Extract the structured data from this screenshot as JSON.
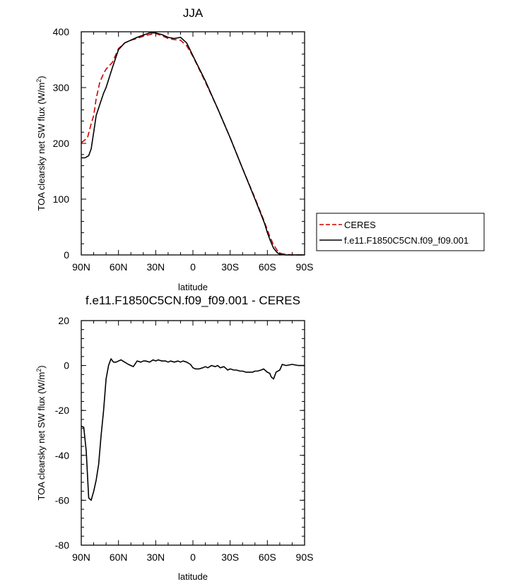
{
  "chart_data": [
    {
      "type": "line",
      "title": "JJA",
      "xlabel": "latitude",
      "ylabel": "TOA clearsky net SW flux (W/m",
      "ylabel_sup": "2",
      "ylabel_close": ")",
      "xlim": [
        90,
        -90
      ],
      "ylim": [
        0,
        400
      ],
      "x_ticks": [
        {
          "value": 90,
          "label": "90N"
        },
        {
          "value": 60,
          "label": "60N"
        },
        {
          "value": 30,
          "label": "30N"
        },
        {
          "value": 0,
          "label": "0"
        },
        {
          "value": -30,
          "label": "30S"
        },
        {
          "value": -60,
          "label": "60S"
        },
        {
          "value": -90,
          "label": "90S"
        }
      ],
      "y_ticks": [
        0,
        100,
        200,
        300,
        400
      ],
      "grid": false,
      "legend": "right",
      "series": [
        {
          "name": "CERES",
          "color": "#cc0000",
          "dash": "dashed",
          "x": [
            90,
            85,
            82,
            80,
            78,
            75,
            72,
            70,
            65,
            60,
            55,
            50,
            45,
            40,
            35,
            30,
            25,
            20,
            15,
            10,
            5,
            0,
            -10,
            -20,
            -30,
            -40,
            -50,
            -55,
            -58,
            -60,
            -62,
            -65,
            -68,
            -70,
            -75,
            -80,
            -85,
            -90
          ],
          "y": [
            201,
            210,
            235,
            250,
            280,
            310,
            325,
            333,
            345,
            370,
            380,
            385,
            388,
            392,
            395,
            397,
            393,
            388,
            386,
            385,
            375,
            356,
            310,
            262,
            210,
            155,
            102,
            74,
            57,
            45,
            33,
            18,
            8,
            3,
            1,
            0,
            0,
            0
          ]
        },
        {
          "name": "f.e11.F1850C5CN.f09_f09.001",
          "color": "#000000",
          "dash": "solid",
          "x": [
            90,
            87,
            84,
            82,
            80,
            78,
            75,
            72,
            70,
            65,
            60,
            55,
            50,
            45,
            40,
            35,
            30,
            25,
            20,
            15,
            10,
            5,
            0,
            -10,
            -20,
            -30,
            -40,
            -50,
            -55,
            -58,
            -60,
            -62,
            -65,
            -68,
            -70,
            -75,
            -80,
            -85,
            -90
          ],
          "y": [
            174,
            174,
            178,
            190,
            220,
            250,
            270,
            290,
            300,
            335,
            368,
            380,
            385,
            390,
            394,
            398,
            398,
            395,
            390,
            388,
            390,
            380,
            357,
            312,
            262,
            210,
            155,
            100,
            72,
            55,
            40,
            28,
            12,
            4,
            1,
            0,
            0,
            0,
            0
          ]
        }
      ]
    },
    {
      "type": "line",
      "title": "f.e11.F1850C5CN.f09_f09.001 - CERES",
      "xlabel": "latitude",
      "ylabel": "TOA clearsky net SW flux (W/m",
      "ylabel_sup": "2",
      "ylabel_close": ")",
      "xlim": [
        90,
        -90
      ],
      "ylim": [
        -80,
        20
      ],
      "x_ticks": [
        {
          "value": 90,
          "label": "90N"
        },
        {
          "value": 60,
          "label": "60N"
        },
        {
          "value": 30,
          "label": "30N"
        },
        {
          "value": 0,
          "label": "0"
        },
        {
          "value": -30,
          "label": "30S"
        },
        {
          "value": -60,
          "label": "60S"
        },
        {
          "value": -90,
          "label": "90S"
        }
      ],
      "y_ticks": [
        20,
        0,
        -20,
        -40,
        -60,
        -80
      ],
      "grid": false,
      "series": [
        {
          "name": "",
          "color": "#000000",
          "dash": "solid",
          "x": [
            90,
            88,
            86,
            84,
            82,
            80,
            78,
            76,
            74,
            72,
            70,
            68,
            66,
            64,
            62,
            60,
            58,
            55,
            52,
            50,
            48,
            45,
            42,
            40,
            38,
            35,
            32,
            30,
            28,
            25,
            22,
            20,
            18,
            15,
            12,
            10,
            8,
            5,
            2,
            0,
            -2,
            -5,
            -8,
            -10,
            -12,
            -15,
            -18,
            -20,
            -22,
            -25,
            -28,
            -30,
            -33,
            -35,
            -38,
            -40,
            -43,
            -45,
            -48,
            -50,
            -52,
            -55,
            -57,
            -58,
            -60,
            -62,
            -63,
            -65,
            -67,
            -70,
            -72,
            -75,
            -80,
            -85,
            -90
          ],
          "y": [
            -27,
            -27.5,
            -38,
            -59,
            -60,
            -56,
            -51,
            -44,
            -31,
            -20,
            -6,
            0,
            3,
            1.5,
            1.5,
            2,
            2.5,
            1.5,
            0.5,
            0,
            -0.5,
            2,
            1.5,
            2,
            2,
            1.5,
            2.5,
            2,
            2.5,
            2,
            2,
            1.5,
            2,
            1.5,
            2,
            1.5,
            2,
            1.5,
            0.5,
            -1,
            -1.5,
            -1.5,
            -1,
            -0.5,
            -1,
            0,
            -0.5,
            0,
            -1,
            -0.5,
            -2,
            -1.5,
            -2,
            -2,
            -2.5,
            -2.5,
            -3,
            -3,
            -3,
            -2.5,
            -2.5,
            -2,
            -1.5,
            -2,
            -3,
            -3.5,
            -5,
            -6,
            -3,
            -2,
            0.5,
            0,
            0.5,
            0,
            0
          ]
        }
      ]
    }
  ]
}
